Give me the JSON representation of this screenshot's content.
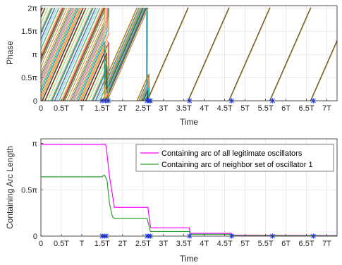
{
  "chart_data": [
    {
      "type": "line",
      "xlabel": "Time",
      "ylabel": "Phase",
      "xlim": [
        0,
        7.25
      ],
      "ylim": [
        0,
        2.05
      ],
      "x_unit": "T",
      "y_unit": "π",
      "x_ticks": [
        0,
        0.5,
        1,
        1.5,
        2,
        2.5,
        3,
        3.5,
        4,
        4.5,
        5,
        5.5,
        6,
        6.5,
        7
      ],
      "x_tick_labels": [
        "0",
        "0.5T",
        "T",
        "1.5T",
        "2T",
        "2.5T",
        "3T",
        "3.5T",
        "4T",
        "4.5T",
        "5T",
        "5.5T",
        "6T",
        "6.5T",
        "7T"
      ],
      "y_ticks": [
        0,
        0.5,
        1,
        1.5,
        2
      ],
      "y_tick_labels": [
        "0",
        "0.5π",
        "π",
        "1.5π",
        "2π"
      ],
      "grid": true,
      "description_series": "many oscillators, phase rising linearly and resetting at 2π; converging to a single synchronized sawtooth",
      "reset_markers_x": [
        1.5,
        1.58,
        1.65,
        2.6,
        2.65,
        2.68,
        3.64,
        4.67,
        5.67,
        6.67
      ]
    },
    {
      "type": "line",
      "xlabel": "Time",
      "ylabel": "Containing Arc Length",
      "xlim": [
        0,
        7.25
      ],
      "ylim": [
        0,
        1.05
      ],
      "x_ticks": [
        0,
        0.5,
        1,
        1.5,
        2,
        2.5,
        3,
        3.5,
        4,
        4.5,
        5,
        5.5,
        6,
        6.5,
        7
      ],
      "x_tick_labels": [
        "0",
        "0.5T",
        "T",
        "1.5T",
        "2T",
        "2.5T",
        "3T",
        "3.5T",
        "4T",
        "4.5T",
        "5T",
        "5.5T",
        "6T",
        "6.5T",
        "7T"
      ],
      "y_ticks": [
        0,
        0.5,
        1
      ],
      "y_tick_labels": [
        "0",
        "0.5π",
        "π"
      ],
      "grid": true,
      "legend_position": "top-right",
      "series": [
        {
          "name": "Containing arc of all legitimate oscillators",
          "color": "#ff00ff",
          "points": [
            [
              0,
              0.99
            ],
            [
              1.58,
              0.99
            ],
            [
              1.6,
              0.96
            ],
            [
              1.68,
              0.64
            ],
            [
              1.75,
              0.45
            ],
            [
              1.8,
              0.31
            ],
            [
              2.62,
              0.31
            ],
            [
              2.66,
              0.16
            ],
            [
              2.69,
              0.09
            ],
            [
              3.63,
              0.09
            ],
            [
              3.66,
              0.03
            ],
            [
              4.66,
              0.03
            ],
            [
              4.7,
              0.01
            ],
            [
              7.25,
              0.005
            ]
          ]
        },
        {
          "name": "Containing arc of  neighbor set of oscillator 1",
          "color": "#2ca02c",
          "points": [
            [
              0,
              0.64
            ],
            [
              1.5,
              0.64
            ],
            [
              1.52,
              0.65
            ],
            [
              1.55,
              0.66
            ],
            [
              1.58,
              0.64
            ],
            [
              1.62,
              0.6
            ],
            [
              1.68,
              0.35
            ],
            [
              1.75,
              0.21
            ],
            [
              1.8,
              0.19
            ],
            [
              2.6,
              0.19
            ],
            [
              2.64,
              0.12
            ],
            [
              2.68,
              0.05
            ],
            [
              3.63,
              0.05
            ],
            [
              3.66,
              0.02
            ],
            [
              4.66,
              0.02
            ],
            [
              4.7,
              0.005
            ],
            [
              7.25,
              0.002
            ]
          ]
        }
      ],
      "markers_x": [
        1.5,
        1.55,
        1.6,
        2.6,
        2.64,
        2.68,
        3.64,
        4.67,
        5.67,
        6.67
      ]
    }
  ]
}
